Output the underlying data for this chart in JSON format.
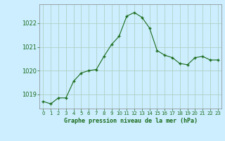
{
  "x": [
    0,
    1,
    2,
    3,
    4,
    5,
    6,
    7,
    8,
    9,
    10,
    11,
    12,
    13,
    14,
    15,
    16,
    17,
    18,
    19,
    20,
    21,
    22,
    23
  ],
  "y": [
    1018.7,
    1018.6,
    1018.85,
    1018.85,
    1019.55,
    1019.9,
    1020.0,
    1020.05,
    1020.6,
    1021.1,
    1021.45,
    1022.3,
    1022.45,
    1022.25,
    1021.8,
    1020.85,
    1020.65,
    1020.55,
    1020.3,
    1020.25,
    1020.55,
    1020.6,
    1020.45,
    1020.45
  ],
  "line_color": "#1a6b1a",
  "marker": "+",
  "marker_size": 3.5,
  "marker_linewidth": 1.0,
  "line_width": 0.8,
  "background_color": "#cceeff",
  "grid_color": "#aaccbb",
  "xlabel": "Graphe pression niveau de la mer (hPa)",
  "xlabel_color": "#1a6b1a",
  "tick_color": "#1a6b1a",
  "ylim": [
    1018.4,
    1022.8
  ],
  "xlim": [
    -0.5,
    23.5
  ],
  "yticks": [
    1019,
    1020,
    1021,
    1022
  ],
  "xtick_labels": [
    "0",
    "1",
    "2",
    "3",
    "4",
    "5",
    "6",
    "7",
    "8",
    "9",
    "10",
    "11",
    "12",
    "13",
    "14",
    "15",
    "16",
    "17",
    "18",
    "19",
    "20",
    "21",
    "22",
    "23"
  ],
  "spine_color": "#888888"
}
